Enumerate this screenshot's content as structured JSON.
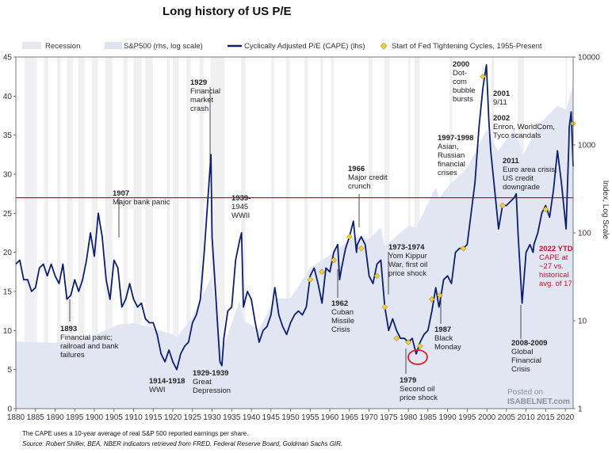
{
  "chart_data": {
    "type": "line",
    "title": "Long history of US P/E",
    "ylabel_right": "Index, Log Scale",
    "xlim": [
      1880,
      2022
    ],
    "ylim_left": [
      0,
      45
    ],
    "ylim_right": [
      1,
      10000
    ],
    "right_scale": "log",
    "x_ticks": [
      1880,
      1885,
      1890,
      1895,
      1900,
      1905,
      1910,
      1915,
      1920,
      1925,
      1930,
      1935,
      1940,
      1945,
      1950,
      1955,
      1960,
      1965,
      1970,
      1975,
      1980,
      1985,
      1990,
      1995,
      2000,
      2005,
      2010,
      2015,
      2020
    ],
    "y_ticks_left": [
      0,
      5,
      10,
      15,
      20,
      25,
      30,
      35,
      40,
      45
    ],
    "y_ticks_right": [
      1,
      10,
      100,
      1000,
      10000
    ],
    "legend": {
      "recession": "Recession",
      "sp500": "S&P500 (rhs, log scale)",
      "cape": "Cyclically Adjusted P/E (CAPE) (lhs)",
      "fed": "Start of Fed Tightening Cycles, 1955-Present"
    },
    "colors": {
      "cape": "#0c1f6e",
      "sp500_area": "#e2e6f2",
      "recession": "#f0f0f3",
      "fed_marker": "#f2cd3a",
      "reference_line": "#c8102e"
    },
    "reference_line_value": 27,
    "recessions": [
      [
        1882.2,
        1885.4
      ],
      [
        1887.2,
        1888.3
      ],
      [
        1890.5,
        1891.4
      ],
      [
        1893.0,
        1894.5
      ],
      [
        1895.9,
        1897.5
      ],
      [
        1899.4,
        1900.9
      ],
      [
        1902.7,
        1904.6
      ],
      [
        1907.4,
        1908.5
      ],
      [
        1910.0,
        1912.0
      ],
      [
        1913.0,
        1914.9
      ],
      [
        1918.6,
        1919.2
      ],
      [
        1920.0,
        1921.5
      ],
      [
        1923.4,
        1924.5
      ],
      [
        1926.8,
        1927.9
      ],
      [
        1929.6,
        1933.2
      ],
      [
        1937.4,
        1938.5
      ],
      [
        1945.1,
        1945.8
      ],
      [
        1948.9,
        1949.8
      ],
      [
        1953.5,
        1954.4
      ],
      [
        1957.6,
        1958.3
      ],
      [
        1960.3,
        1961.1
      ],
      [
        1969.9,
        1970.9
      ],
      [
        1973.9,
        1975.2
      ],
      [
        1980.0,
        1980.5
      ],
      [
        1981.5,
        1982.9
      ],
      [
        1990.5,
        1991.2
      ],
      [
        2001.2,
        2001.9
      ],
      [
        2007.9,
        2009.5
      ],
      [
        2020.1,
        2020.4
      ]
    ],
    "cape_series": [
      [
        1880,
        18.5
      ],
      [
        1881,
        19
      ],
      [
        1882,
        16.5
      ],
      [
        1883,
        16.5
      ],
      [
        1884,
        15
      ],
      [
        1885,
        15.5
      ],
      [
        1886,
        18
      ],
      [
        1887,
        18.5
      ],
      [
        1888,
        17
      ],
      [
        1889,
        18.5
      ],
      [
        1890,
        17
      ],
      [
        1891,
        16
      ],
      [
        1892,
        18.5
      ],
      [
        1893,
        14
      ],
      [
        1894,
        14.5
      ],
      [
        1895,
        16.5
      ],
      [
        1896,
        15
      ],
      [
        1897,
        16.5
      ],
      [
        1898,
        19
      ],
      [
        1899,
        22.5
      ],
      [
        1900,
        19.5
      ],
      [
        1901,
        25
      ],
      [
        1902,
        22
      ],
      [
        1903,
        16.5
      ],
      [
        1904,
        14
      ],
      [
        1905,
        19
      ],
      [
        1906,
        18
      ],
      [
        1907,
        13
      ],
      [
        1908,
        14
      ],
      [
        1909,
        16
      ],
      [
        1910,
        14
      ],
      [
        1911,
        13
      ],
      [
        1912,
        13.5
      ],
      [
        1913,
        11.5
      ],
      [
        1914,
        11
      ],
      [
        1915,
        11
      ],
      [
        1916,
        9.5
      ],
      [
        1917,
        7
      ],
      [
        1918,
        6
      ],
      [
        1919,
        7.5
      ],
      [
        1920,
        6
      ],
      [
        1921,
        5
      ],
      [
        1922,
        7
      ],
      [
        1923,
        8
      ],
      [
        1924,
        8.5
      ],
      [
        1925,
        11
      ],
      [
        1926,
        12
      ],
      [
        1927,
        14
      ],
      [
        1928,
        20
      ],
      [
        1929.7,
        32.5
      ],
      [
        1930,
        22
      ],
      [
        1931,
        14
      ],
      [
        1932,
        6
      ],
      [
        1932.5,
        5.5
      ],
      [
        1933,
        9
      ],
      [
        1934,
        12.5
      ],
      [
        1935,
        13
      ],
      [
        1936,
        19
      ],
      [
        1937,
        21.5
      ],
      [
        1937.5,
        22.5
      ],
      [
        1938,
        13
      ],
      [
        1939,
        15
      ],
      [
        1940,
        14
      ],
      [
        1941,
        11
      ],
      [
        1942,
        8.5
      ],
      [
        1943,
        10
      ],
      [
        1944,
        10.5
      ],
      [
        1945,
        12
      ],
      [
        1946,
        15.5
      ],
      [
        1947,
        12
      ],
      [
        1948,
        10.5
      ],
      [
        1949,
        9.5
      ],
      [
        1950,
        11
      ],
      [
        1951,
        12
      ],
      [
        1952,
        12.5
      ],
      [
        1953,
        12
      ],
      [
        1954,
        13
      ],
      [
        1955,
        17
      ],
      [
        1956,
        18
      ],
      [
        1957,
        16
      ],
      [
        1958,
        13.5
      ],
      [
        1959,
        18
      ],
      [
        1960,
        17.5
      ],
      [
        1961,
        20
      ],
      [
        1962,
        21
      ],
      [
        1962.5,
        16.5
      ],
      [
        1963,
        18
      ],
      [
        1964,
        20.5
      ],
      [
        1965,
        22
      ],
      [
        1966,
        24
      ],
      [
        1966.8,
        20
      ],
      [
        1967,
        21
      ],
      [
        1968,
        22
      ],
      [
        1969,
        21
      ],
      [
        1970,
        17
      ],
      [
        1971,
        16
      ],
      [
        1972,
        18.5
      ],
      [
        1973,
        19
      ],
      [
        1974,
        13
      ],
      [
        1975,
        10
      ],
      [
        1976,
        11.5
      ],
      [
        1977,
        10
      ],
      [
        1978,
        9
      ],
      [
        1979,
        9
      ],
      [
        1980,
        8.5
      ],
      [
        1981,
        9
      ],
      [
        1982,
        7
      ],
      [
        1983,
        8.5
      ],
      [
        1984,
        9.5
      ],
      [
        1985,
        10
      ],
      [
        1986,
        12.5
      ],
      [
        1987,
        15.5
      ],
      [
        1987.8,
        13
      ],
      [
        1988,
        13.5
      ],
      [
        1989,
        16.5
      ],
      [
        1990,
        17
      ],
      [
        1991,
        16
      ],
      [
        1992,
        20
      ],
      [
        1993,
        20.5
      ],
      [
        1994,
        20.5
      ],
      [
        1995,
        21
      ],
      [
        1996,
        25
      ],
      [
        1997,
        29
      ],
      [
        1998,
        36
      ],
      [
        1999,
        41
      ],
      [
        1999.9,
        44
      ],
      [
        2000.5,
        37
      ],
      [
        2001,
        33
      ],
      [
        2002,
        28
      ],
      [
        2003,
        23
      ],
      [
        2004,
        26
      ],
      [
        2005,
        26
      ],
      [
        2006,
        26.5
      ],
      [
        2007,
        27
      ],
      [
        2007.5,
        27.5
      ],
      [
        2008,
        22
      ],
      [
        2009,
        13.5
      ],
      [
        2010,
        20
      ],
      [
        2011,
        21
      ],
      [
        2011.8,
        20
      ],
      [
        2012,
        21
      ],
      [
        2013,
        22.5
      ],
      [
        2014,
        25
      ],
      [
        2015,
        26
      ],
      [
        2016,
        24.5
      ],
      [
        2017,
        28
      ],
      [
        2018,
        33
      ],
      [
        2019,
        29
      ],
      [
        2020.2,
        23
      ],
      [
        2020.9,
        34
      ],
      [
        2021,
        36
      ],
      [
        2021.5,
        38
      ],
      [
        2022,
        31
      ]
    ],
    "sp500_series": [
      [
        1880,
        5.8
      ],
      [
        1890,
        5.6
      ],
      [
        1900,
        6.8
      ],
      [
        1906,
        9
      ],
      [
        1910,
        9.4
      ],
      [
        1915,
        8.2
      ],
      [
        1920,
        7
      ],
      [
        1921,
        6.5
      ],
      [
        1925,
        11
      ],
      [
        1929.7,
        31
      ],
      [
        1932.5,
        4.5
      ],
      [
        1937,
        17
      ],
      [
        1938,
        10
      ],
      [
        1942,
        8
      ],
      [
        1946,
        18
      ],
      [
        1950,
        18
      ],
      [
        1955,
        40
      ],
      [
        1960,
        56
      ],
      [
        1966,
        90
      ],
      [
        1970,
        85
      ],
      [
        1973,
        115
      ],
      [
        1974,
        70
      ],
      [
        1980,
        120
      ],
      [
        1982,
        115
      ],
      [
        1987,
        330
      ],
      [
        1987.9,
        250
      ],
      [
        1990,
        330
      ],
      [
        1995,
        550
      ],
      [
        2000,
        1500
      ],
      [
        2002.8,
        850
      ],
      [
        2007,
        1520
      ],
      [
        2009.2,
        750
      ],
      [
        2013,
        1650
      ],
      [
        2015,
        2050
      ],
      [
        2018,
        2800
      ],
      [
        2020.2,
        2500
      ],
      [
        2021.9,
        4700
      ],
      [
        2022,
        4000
      ]
    ],
    "fed_markers": [
      [
        1955,
        16.5
      ],
      [
        1958,
        17.5
      ],
      [
        1961,
        19
      ],
      [
        1965,
        22
      ],
      [
        1968,
        20.5
      ],
      [
        1972,
        17
      ],
      [
        1974,
        13
      ],
      [
        1977,
        9
      ],
      [
        1980,
        8.5
      ],
      [
        1983,
        8
      ],
      [
        1986,
        14
      ],
      [
        1988,
        14.5
      ],
      [
        1994,
        20.5
      ],
      [
        1999,
        42.5
      ],
      [
        2004,
        26
      ],
      [
        2015,
        25.5
      ],
      [
        2022,
        36.5
      ]
    ],
    "annotations": [
      {
        "year": "1893",
        "lines": [
          "Financial panic;",
          "railroad and bank",
          "failures"
        ]
      },
      {
        "year": "1907",
        "lines": [
          "Major bank panic"
        ]
      },
      {
        "year": "1914-1918",
        "lines": [
          "WWI"
        ]
      },
      {
        "year": "1929",
        "lines": [
          "Financial",
          "market",
          "crash"
        ]
      },
      {
        "year": "1929-1939",
        "lines": [
          "Great",
          "Depression"
        ]
      },
      {
        "year": "1939-",
        "lines": [
          "1945",
          "WWII"
        ]
      },
      {
        "year": "1962",
        "lines": [
          "Cuban",
          "Missile",
          "Crisis"
        ]
      },
      {
        "year": "1966",
        "lines": [
          "Major credit",
          "crunch"
        ]
      },
      {
        "year": "1973-1974",
        "lines": [
          "Yom Kippur",
          "War, first oil",
          "price shock"
        ]
      },
      {
        "year": "1979",
        "lines": [
          "Second oil",
          "price shock"
        ]
      },
      {
        "year": "1987",
        "lines": [
          "Black",
          "Monday"
        ]
      },
      {
        "year": "1997-1998",
        "lines": [
          "Asian,",
          "Russian",
          "financial",
          "crises"
        ]
      },
      {
        "year": "2000",
        "lines": [
          "Dot-",
          "com",
          "bubble",
          "bursts"
        ]
      },
      {
        "year": "2001",
        "lines": [
          "9/11"
        ]
      },
      {
        "year": "2002",
        "lines": [
          "Enron, WorldCom,",
          "Tyco scandals"
        ]
      },
      {
        "year": "2011",
        "lines": [
          "Euro area crisis,",
          "US credit",
          "downgrade"
        ]
      },
      {
        "year": "2008-2009",
        "lines": [
          "Global",
          "Financial",
          "Crisis"
        ]
      },
      {
        "year": "2022 YTD",
        "lines": [
          "CAPE at",
          "~27 vs.",
          "historical",
          "avg. of 17"
        ]
      }
    ]
  },
  "watermark": {
    "line1": "Posted on",
    "line2": "ISABELNET.com"
  },
  "footnote": "The CAPE uses a 10-year average of real S&P 500 reported earnings per share.",
  "source": "Source: Robert Shiller, BEA, NBER indicators retrieved from FRED, Federal Reserve Board, Goldman Sachs GIR."
}
